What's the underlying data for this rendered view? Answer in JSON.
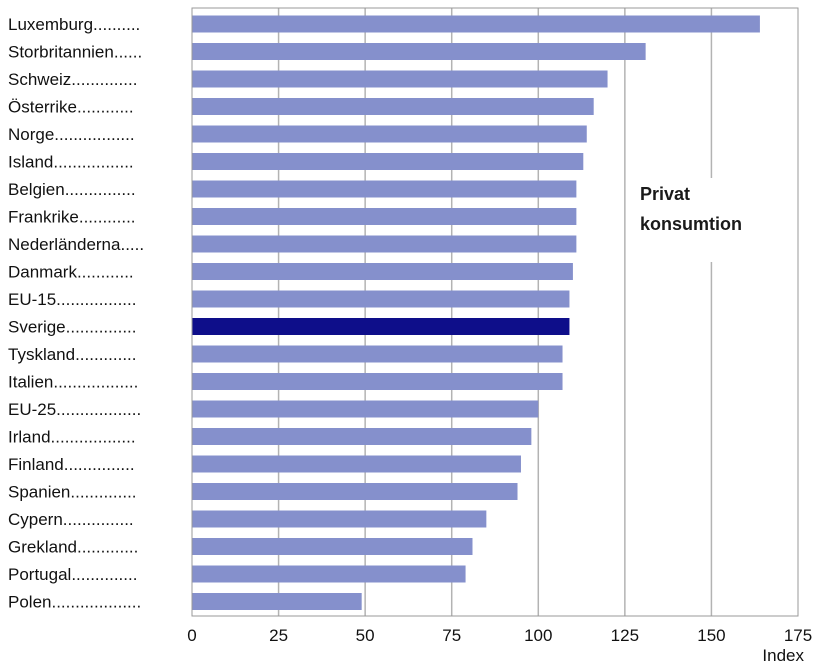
{
  "chart_data": {
    "type": "bar",
    "orientation": "horizontal",
    "categories": [
      "Luxemburg..........",
      "Storbritannien......",
      "Schweiz..............",
      "Österrike............",
      "Norge.................",
      "Island.................",
      "Belgien...............",
      "Frankrike............",
      "Nederländerna.....",
      "Danmark............",
      "EU-15.................",
      "Sverige...............",
      "Tyskland.............",
      "Italien..................",
      "EU-25..................",
      "Irland..................",
      "Finland...............",
      "Spanien..............",
      "Cypern...............",
      "Grekland.............",
      "Portugal..............",
      "Polen..................."
    ],
    "values": [
      164,
      131,
      120,
      116,
      114,
      113,
      111,
      111,
      111,
      110,
      109,
      109,
      107,
      107,
      100,
      98,
      95,
      94,
      85,
      81,
      79,
      49
    ],
    "highlight_index": 11,
    "xlim": [
      0,
      175
    ],
    "xticks": [
      0,
      25,
      50,
      75,
      100,
      125,
      150,
      175
    ],
    "xlabel": "Index",
    "annotation": {
      "lines": [
        "Privat",
        "konsumtion"
      ]
    },
    "grid": "vertical",
    "colors": {
      "bar": "#8590cc",
      "bar_highlight": "#0e0e8a",
      "grid": "#b3b3b3",
      "frame": "#999999"
    }
  }
}
